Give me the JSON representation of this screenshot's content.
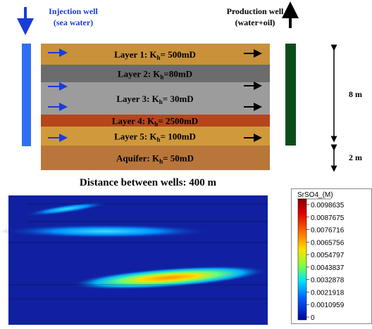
{
  "injection": {
    "title": "Injection well",
    "subtitle": "(sea water)"
  },
  "production": {
    "title": "Production well",
    "subtitle": "(water+oil)"
  },
  "layers": [
    {
      "name": "Layer 1: K",
      "sub": "h",
      "value": "= 500mD"
    },
    {
      "name": "Layer 2: K",
      "sub": "h",
      "value": "=80mD"
    },
    {
      "name": "Layer 3: K",
      "sub": "h",
      "value": "= 30mD"
    },
    {
      "name": "Layer 4: K",
      "sub": "h",
      "value": "= 2500mD"
    },
    {
      "name": "Layer 5: K",
      "sub": "h",
      "value": "= 100mD"
    },
    {
      "name": "Aquifer: K",
      "sub": "h",
      "value": "= 50mD"
    }
  ],
  "dimensions": [
    "8 m",
    "2 m"
  ],
  "distance": "Distance between wells: 400 m",
  "colorbar": {
    "title": "SrSO4_(M)",
    "labels": [
      "0.0098635",
      "0.0087675",
      "0.0076716",
      "0.0065756",
      "0.0054797",
      "0.0043837",
      "0.0032878",
      "0.0021918",
      "0.0010959",
      "0"
    ]
  }
}
